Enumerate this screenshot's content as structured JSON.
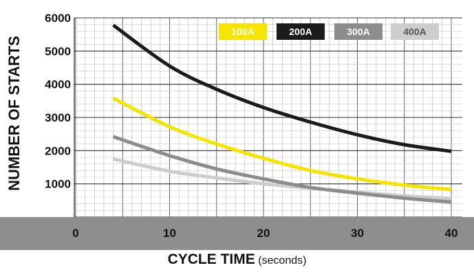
{
  "chart_data": {
    "type": "line",
    "xlabel": "CYCLE TIME",
    "xlabel_unit": "(seconds)",
    "ylabel": "NUMBER OF STARTS",
    "xlim": [
      0,
      40
    ],
    "ylim": [
      0,
      6000
    ],
    "x_ticks": [
      0,
      10,
      20,
      30,
      40
    ],
    "y_ticks": [
      1000,
      2000,
      3000,
      4000,
      5000,
      6000
    ],
    "grid": true,
    "legend_position": "top-right",
    "series": [
      {
        "name": "100A",
        "color": "#f5e400",
        "label_text_color": "#ffffff",
        "x": [
          4,
          10,
          15,
          20,
          25,
          30,
          35,
          40
        ],
        "y": [
          3580,
          2720,
          2200,
          1770,
          1400,
          1150,
          960,
          830
        ]
      },
      {
        "name": "200A",
        "color": "#1c1a1b",
        "label_text_color": "#ffffff",
        "x": [
          4,
          10,
          15,
          20,
          25,
          30,
          35,
          40
        ],
        "y": [
          5780,
          4550,
          3850,
          3300,
          2860,
          2480,
          2180,
          1980
        ]
      },
      {
        "name": "300A",
        "color": "#8c8c8e",
        "label_text_color": "#ffffff",
        "x": [
          4,
          10,
          15,
          20,
          25,
          30,
          35,
          40
        ],
        "y": [
          2420,
          1850,
          1450,
          1150,
          890,
          720,
          570,
          450
        ]
      },
      {
        "name": "400A",
        "color": "#cdcdcf",
        "label_text_color": "#555555",
        "x": [
          4,
          10,
          15,
          20,
          25,
          30,
          35,
          40
        ],
        "y": [
          1750,
          1380,
          1180,
          1000,
          870,
          750,
          640,
          560
        ]
      }
    ]
  }
}
